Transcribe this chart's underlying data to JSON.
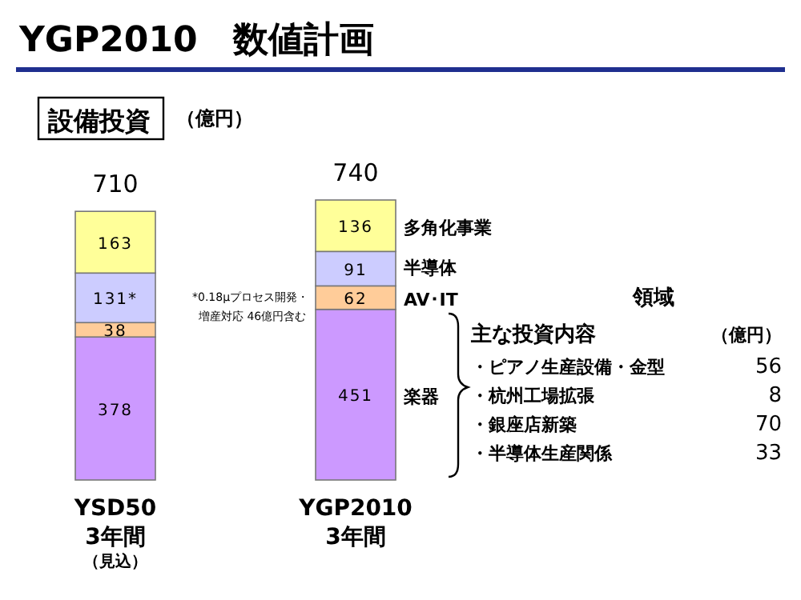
{
  "chart_data": {
    "type": "bar",
    "stacked": true,
    "title": "YGP2010　数値計画",
    "subtitle": "設備投資",
    "categories": [
      "YSD50\n3年間",
      "YGP2010\n3年間"
    ],
    "series": [
      {
        "name": "楽器",
        "color": "#cc99ff",
        "values": [
          378,
          451
        ]
      },
      {
        "name": "AV･IT",
        "color": "#ffcc99",
        "values": [
          38,
          62
        ]
      },
      {
        "name": "半導体",
        "color": "#ccccff",
        "values": [
          131,
          91
        ],
        "value_labels": [
          "131*",
          "91"
        ]
      },
      {
        "name": "多角化事業",
        "color": "#ffff99",
        "values": [
          163,
          136
        ]
      }
    ],
    "data_labels": true,
    "totals": [
      "710",
      "740"
    ],
    "annotations": [
      "（億円）",
      "*0.18μプロセス開発・",
      "増産対応 46億円含む",
      "（見込）",
      "領域",
      "主な投資内容",
      "（億円）",
      "・ピアノ生産設備・金型",
      "56",
      "・杭州工場拡張",
      "8",
      "・銀座店新築",
      "70",
      "・半導体生産関係",
      "33"
    ]
  }
}
